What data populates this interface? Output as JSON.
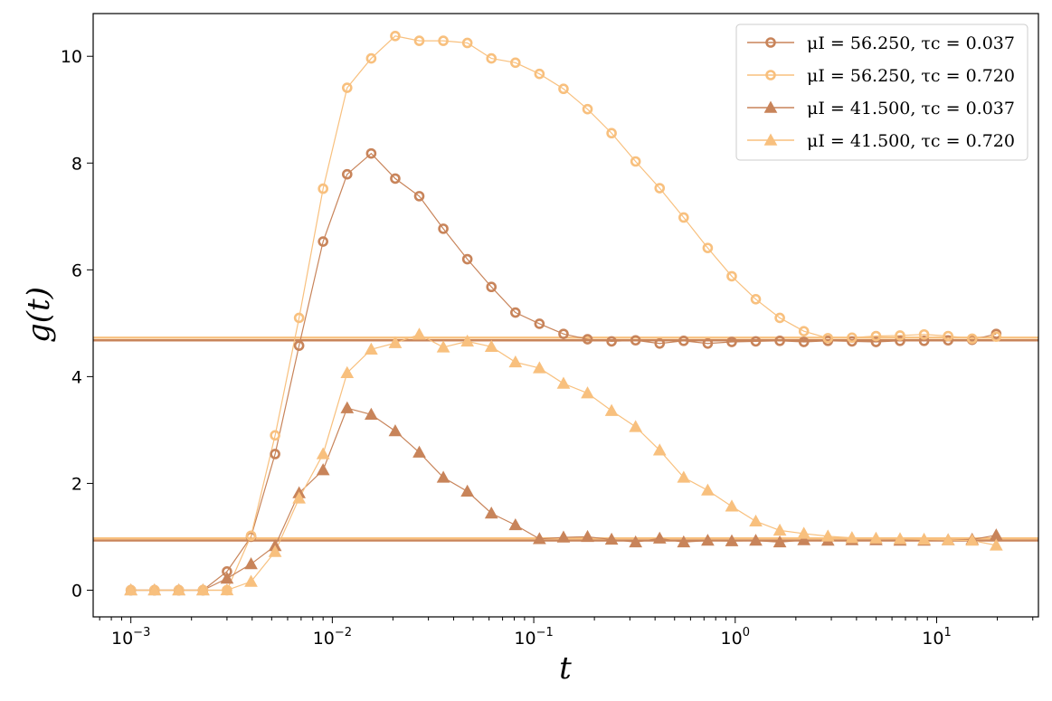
{
  "chart_data": {
    "type": "line",
    "xscale": "log",
    "xlabel": "t",
    "ylabel": "g(t)",
    "xlim": [
      0.00065,
      32
    ],
    "ylim": [
      -0.5,
      10.8
    ],
    "yticks": [
      0,
      2,
      4,
      6,
      8,
      10
    ],
    "xticks": [
      {
        "value": 0.001,
        "base": "10",
        "exp": "−3"
      },
      {
        "value": 0.01,
        "base": "10",
        "exp": "−2"
      },
      {
        "value": 0.1,
        "base": "10",
        "exp": "−1"
      },
      {
        "value": 1,
        "base": "10",
        "exp": "0"
      },
      {
        "value": 10,
        "base": "10",
        "exp": "1"
      }
    ],
    "grid": false,
    "legend_position": "top-right",
    "x": [
      0.001,
      0.00131,
      0.00173,
      0.00228,
      0.003,
      0.00395,
      0.0052,
      0.00684,
      0.009,
      0.01185,
      0.0156,
      0.02053,
      0.02702,
      0.03556,
      0.04681,
      0.06161,
      0.0811,
      0.1067,
      0.1405,
      0.1849,
      0.2434,
      0.3203,
      0.4216,
      0.5549,
      0.7304,
      0.9613,
      1.265,
      1.665,
      2.192,
      2.885,
      3.798,
      4.999,
      6.579,
      8.66,
      11.4,
      15.0,
      19.75
    ],
    "series": [
      {
        "name": "μI = 56.250, τc = 0.037",
        "color": "#c8845a",
        "marker": "circle",
        "values": [
          0.0,
          0.0,
          0.0,
          0.0,
          0.35,
          1.0,
          2.55,
          4.58,
          6.53,
          7.79,
          8.18,
          7.71,
          7.38,
          6.77,
          6.2,
          5.68,
          5.2,
          4.99,
          4.8,
          4.7,
          4.66,
          4.68,
          4.62,
          4.67,
          4.62,
          4.65,
          4.66,
          4.67,
          4.65,
          4.67,
          4.66,
          4.65,
          4.67,
          4.67,
          4.68,
          4.69,
          4.8
        ],
        "baseline": 4.68
      },
      {
        "name": "μI = 56.250, τc = 0.720",
        "color": "#f8c07e",
        "marker": "circle",
        "values": [
          0.0,
          0.0,
          0.0,
          0.0,
          0.0,
          1.02,
          2.9,
          5.1,
          7.52,
          9.41,
          9.96,
          10.38,
          10.29,
          10.29,
          10.25,
          9.96,
          9.88,
          9.67,
          9.39,
          9.01,
          8.56,
          8.03,
          7.53,
          6.98,
          6.41,
          5.88,
          5.45,
          5.1,
          4.85,
          4.72,
          4.73,
          4.76,
          4.77,
          4.79,
          4.76,
          4.71,
          4.75
        ],
        "baseline": 4.73
      },
      {
        "name": "μI = 41.500, τc = 0.037",
        "color": "#c8845a",
        "marker": "triangle",
        "values": [
          0.0,
          0.0,
          0.0,
          0.0,
          0.22,
          0.49,
          0.83,
          1.82,
          2.25,
          3.41,
          3.29,
          2.98,
          2.58,
          2.11,
          1.85,
          1.44,
          1.22,
          0.96,
          0.99,
          1.0,
          0.95,
          0.9,
          0.97,
          0.9,
          0.93,
          0.92,
          0.93,
          0.9,
          0.94,
          0.93,
          0.94,
          0.94,
          0.93,
          0.93,
          0.94,
          0.95,
          1.03
        ],
        "baseline": 0.93
      },
      {
        "name": "μI = 41.500, τc = 0.720",
        "color": "#f8c07e",
        "marker": "triangle",
        "values": [
          0.0,
          0.0,
          0.0,
          0.0,
          0.0,
          0.16,
          0.72,
          1.72,
          2.55,
          4.07,
          4.51,
          4.63,
          4.79,
          4.55,
          4.66,
          4.56,
          4.27,
          4.16,
          3.87,
          3.69,
          3.36,
          3.06,
          2.62,
          2.11,
          1.87,
          1.57,
          1.29,
          1.12,
          1.06,
          1.01,
          0.98,
          0.97,
          0.96,
          0.95,
          0.94,
          0.93,
          0.84
        ],
        "baseline": 0.97
      }
    ]
  }
}
